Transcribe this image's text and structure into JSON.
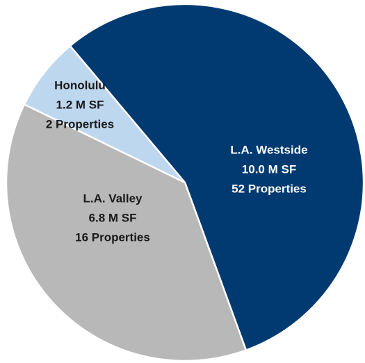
{
  "chart_data": {
    "type": "pie",
    "categories": [
      "L.A. Westside",
      "L.A. Valley",
      "Honolulu"
    ],
    "values": [
      10.0,
      6.8,
      1.2
    ],
    "value_labels": [
      "10.0 M SF",
      "6.8 M SF",
      "1.2 M SF"
    ],
    "property_labels": [
      "52 Properties",
      "16 Properties",
      "2 Properties"
    ],
    "colors": [
      "#003a70",
      "#b8b8b8",
      "#bdd7ee"
    ]
  }
}
